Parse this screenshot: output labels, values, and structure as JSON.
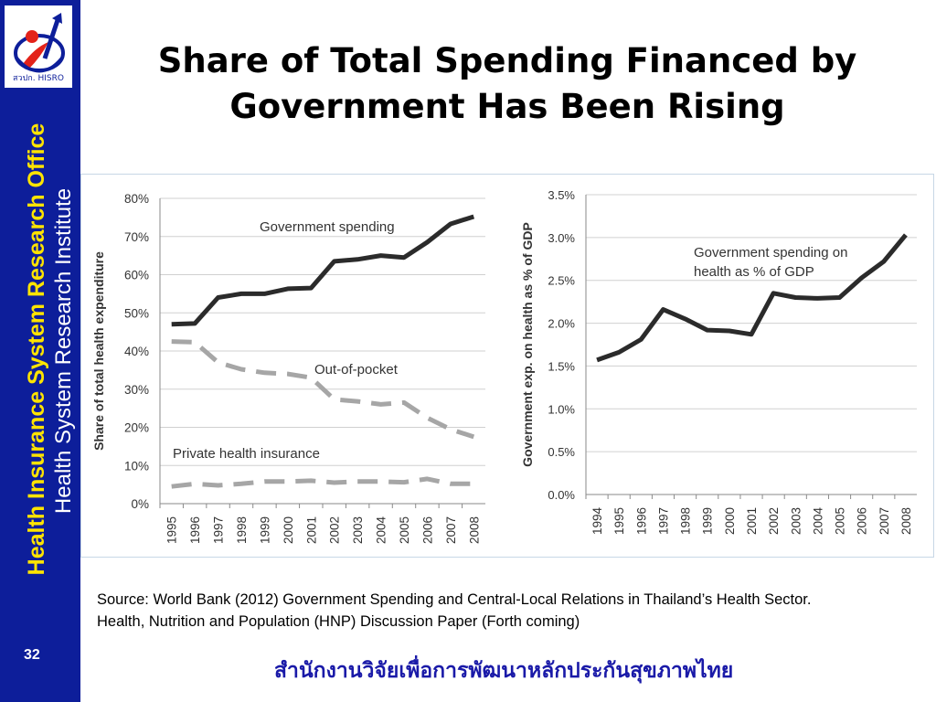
{
  "slide": {
    "title_line1": "Share of Total Spending Financed by",
    "title_line2": "Government Has Been Rising",
    "sidebar_line1": "Health Insurance System Research Office",
    "sidebar_line2": "Health System Research Institute",
    "page_number": "32",
    "source_line1": "Source: World Bank (2012) Government Spending and Central-Local Relations in Thailand’s Health Sector.",
    "source_line2": "Health, Nutrition and Population (HNP) Discussion Paper (Forth coming)",
    "footer_thai": "สำนักงานวิจัยเพื่อการพัฒนาหลักประกันสุขภาพไทย",
    "logo_text": "สวปก. HISRO",
    "colors": {
      "sidebar": "#0d1e9a",
      "sidebar_title": "#ffe400",
      "footer_text": "#1a1aa8"
    }
  },
  "chart_data": [
    {
      "type": "line",
      "xlabel": "",
      "ylabel": "Share of total health expenditure",
      "x": [
        "1995",
        "1996",
        "1997",
        "1998",
        "1999",
        "2000",
        "2001",
        "2002",
        "2003",
        "2004",
        "2005",
        "2006",
        "2007",
        "2008"
      ],
      "ylim": [
        0,
        80
      ],
      "yticks": [
        "0%",
        "10%",
        "20%",
        "30%",
        "40%",
        "50%",
        "60%",
        "70%",
        "80%"
      ],
      "grid": true,
      "series": [
        {
          "name": "Government spending",
          "style": "solid",
          "color": "#2b2b2b",
          "values": [
            47,
            47.2,
            54,
            55,
            55,
            56.3,
            56.5,
            63.5,
            64,
            65,
            64.5,
            68.5,
            73.3,
            75.2
          ]
        },
        {
          "name": "Out-of-pocket",
          "style": "dashed",
          "color": "#a6a6a6",
          "values": [
            42.5,
            42.3,
            37,
            35.2,
            34.3,
            34,
            33,
            27.3,
            26.8,
            26,
            26.5,
            22.5,
            19.5,
            17.5
          ]
        },
        {
          "name": "Private health insurance",
          "style": "dashed",
          "color": "#a6a6a6",
          "values": [
            4.5,
            5.2,
            4.8,
            5.2,
            5.8,
            5.8,
            6,
            5.5,
            5.8,
            5.8,
            5.6,
            6.5,
            5.2,
            5.2
          ]
        }
      ]
    },
    {
      "type": "line",
      "xlabel": "",
      "ylabel": "Government exp. on health as % of GDP",
      "x": [
        "1994",
        "1995",
        "1996",
        "1997",
        "1998",
        "1999",
        "2000",
        "2001",
        "2002",
        "2003",
        "2004",
        "2005",
        "2006",
        "2007",
        "2008"
      ],
      "ylim": [
        0,
        3.5
      ],
      "yticks": [
        "0.0%",
        "0.5%",
        "1.0%",
        "1.5%",
        "2.0%",
        "2.5%",
        "3.0%",
        "3.5%"
      ],
      "grid": true,
      "series": [
        {
          "name": "Government spending on health as % of GDP",
          "style": "solid",
          "color": "#2b2b2b",
          "values": [
            1.57,
            1.66,
            1.81,
            2.16,
            2.05,
            1.92,
            1.91,
            1.87,
            2.35,
            2.3,
            2.29,
            2.3,
            2.53,
            2.72,
            3.03
          ]
        }
      ]
    }
  ]
}
